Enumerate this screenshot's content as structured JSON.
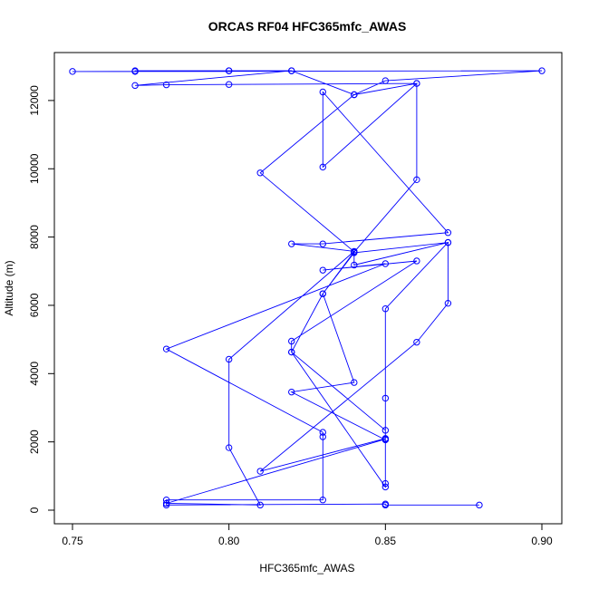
{
  "chart_data": {
    "type": "line",
    "title": "ORCAS RF04 HFC365mfc_AWAS",
    "xlabel": "HFC365mfc_AWAS",
    "ylabel": "Altitude (m)",
    "xlim": [
      0.75,
      0.9
    ],
    "ylim": [
      0,
      12900
    ],
    "x_ticks": [
      0.75,
      0.8,
      0.85,
      0.9
    ],
    "x_tick_labels": [
      "0.75",
      "0.80",
      "0.85",
      "0.90"
    ],
    "y_ticks": [
      0,
      2000,
      4000,
      6000,
      8000,
      10000,
      12000
    ],
    "y_tick_labels": [
      "0",
      "2000",
      "4000",
      "6000",
      "8000",
      "10000",
      "12000"
    ],
    "grid": false,
    "legend": "none",
    "series": [
      {
        "color": "#0000ff",
        "marker": "open-circle",
        "points": [
          [
            0.88,
            150
          ],
          [
            0.85,
            150
          ],
          [
            0.85,
            180
          ],
          [
            0.78,
            150
          ],
          [
            0.78,
            300
          ],
          [
            0.83,
            300
          ],
          [
            0.83,
            2150
          ],
          [
            0.83,
            2280
          ],
          [
            0.78,
            4720
          ],
          [
            0.85,
            7220
          ],
          [
            0.83,
            7030
          ],
          [
            0.86,
            7300
          ],
          [
            0.82,
            4950
          ],
          [
            0.82,
            4630
          ],
          [
            0.85,
            2340
          ],
          [
            0.85,
            2080
          ],
          [
            0.78,
            200
          ],
          [
            0.81,
            150
          ],
          [
            0.8,
            1830
          ],
          [
            0.8,
            4420
          ],
          [
            0.84,
            7580
          ],
          [
            0.82,
            7800
          ],
          [
            0.83,
            7800
          ],
          [
            0.87,
            8130
          ],
          [
            0.83,
            12250
          ],
          [
            0.83,
            10050
          ],
          [
            0.86,
            12500
          ],
          [
            0.84,
            12170
          ],
          [
            0.85,
            12580
          ],
          [
            0.9,
            12870
          ],
          [
            0.75,
            12850
          ],
          [
            0.77,
            12850
          ],
          [
            0.77,
            12870
          ],
          [
            0.8,
            12870
          ],
          [
            0.82,
            12870
          ],
          [
            0.77,
            12440
          ],
          [
            0.78,
            12460
          ],
          [
            0.8,
            12470
          ],
          [
            0.86,
            12500
          ],
          [
            0.86,
            9680
          ],
          [
            0.84,
            7560
          ],
          [
            0.84,
            7180
          ],
          [
            0.87,
            7840
          ],
          [
            0.85,
            5900
          ],
          [
            0.85,
            3280
          ],
          [
            0.85,
            2100
          ],
          [
            0.81,
            1140
          ],
          [
            0.86,
            4920
          ],
          [
            0.87,
            6060
          ],
          [
            0.87,
            7840
          ],
          [
            0.84,
            7540
          ],
          [
            0.83,
            6340
          ],
          [
            0.84,
            3740
          ],
          [
            0.82,
            3460
          ],
          [
            0.85,
            2060
          ],
          [
            0.85,
            780
          ],
          [
            0.85,
            680
          ],
          [
            0.82,
            4630
          ],
          [
            0.83,
            6340
          ],
          [
            0.84,
            7570
          ],
          [
            0.81,
            9880
          ],
          [
            0.84,
            12170
          ],
          [
            0.82,
            12870
          ],
          [
            0.8,
            12870
          ]
        ]
      }
    ]
  }
}
